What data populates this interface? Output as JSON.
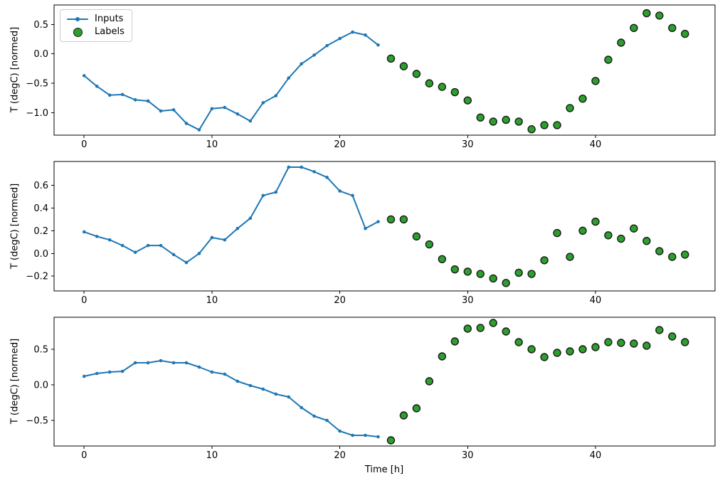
{
  "figure": {
    "background": "#ffffff",
    "grid": false
  },
  "legend": {
    "position": "upper-left-of-first-subplot",
    "entries": [
      {
        "label": "Inputs",
        "marker": "line-with-dot",
        "color": "#1f77b4"
      },
      {
        "label": "Labels",
        "marker": "circle",
        "color": "#2ca02c",
        "edge_color": "#1a1a1a"
      }
    ]
  },
  "chart_data": [
    {
      "type": "line",
      "title": "",
      "xlabel": "",
      "ylabel": "T (degC) [normed]",
      "xlim": [
        -2.35,
        49.35
      ],
      "ylim": [
        -1.38,
        0.83
      ],
      "x_ticks": [
        0,
        10,
        20,
        30,
        40
      ],
      "y_ticks": [
        0.5,
        0.0,
        -0.5,
        -1.0
      ],
      "legend_visible": true,
      "series": [
        {
          "name": "Inputs",
          "type": "line",
          "color": "#1f77b4",
          "x": [
            0,
            1,
            2,
            3,
            4,
            5,
            6,
            7,
            8,
            9,
            10,
            11,
            12,
            13,
            14,
            15,
            16,
            17,
            18,
            19,
            20,
            21,
            22,
            23
          ],
          "values": [
            -0.37,
            -0.55,
            -0.7,
            -0.69,
            -0.78,
            -0.8,
            -0.97,
            -0.95,
            -1.18,
            -1.29,
            -0.93,
            -0.91,
            -1.02,
            -1.14,
            -0.83,
            -0.71,
            -0.41,
            -0.17,
            -0.02,
            0.14,
            0.26,
            0.37,
            0.32,
            0.15
          ]
        },
        {
          "name": "Labels",
          "type": "scatter",
          "color": "#2ca02c",
          "edge_color": "#1a1a1a",
          "x": [
            24,
            25,
            26,
            27,
            28,
            29,
            30,
            31,
            32,
            33,
            34,
            35,
            36,
            37,
            38,
            39,
            40,
            41,
            42,
            43,
            44,
            45,
            46,
            47
          ],
          "values": [
            -0.08,
            -0.21,
            -0.34,
            -0.5,
            -0.56,
            -0.65,
            -0.79,
            -1.08,
            -1.15,
            -1.12,
            -1.15,
            -1.28,
            -1.21,
            -1.21,
            -0.92,
            -0.76,
            -0.46,
            -0.1,
            0.19,
            0.44,
            0.69,
            0.65,
            0.44,
            0.34
          ]
        }
      ]
    },
    {
      "type": "line",
      "title": "",
      "xlabel": "",
      "ylabel": "T (degC) [normed]",
      "xlim": [
        -2.35,
        49.35
      ],
      "ylim": [
        -0.33,
        0.81
      ],
      "x_ticks": [
        0,
        10,
        20,
        30,
        40
      ],
      "y_ticks": [
        0.6,
        0.4,
        0.2,
        0.0,
        -0.2
      ],
      "legend_visible": false,
      "series": [
        {
          "name": "Inputs",
          "type": "line",
          "color": "#1f77b4",
          "x": [
            0,
            1,
            2,
            3,
            4,
            5,
            6,
            7,
            8,
            9,
            10,
            11,
            12,
            13,
            14,
            15,
            16,
            17,
            18,
            19,
            20,
            21,
            22,
            23
          ],
          "values": [
            0.19,
            0.15,
            0.12,
            0.07,
            0.01,
            0.07,
            0.07,
            -0.01,
            -0.08,
            0.0,
            0.14,
            0.12,
            0.22,
            0.31,
            0.51,
            0.54,
            0.76,
            0.76,
            0.72,
            0.67,
            0.55,
            0.51,
            0.22,
            0.28
          ]
        },
        {
          "name": "Labels",
          "type": "scatter",
          "color": "#2ca02c",
          "edge_color": "#1a1a1a",
          "x": [
            24,
            25,
            26,
            27,
            28,
            29,
            30,
            31,
            32,
            33,
            34,
            35,
            36,
            37,
            38,
            39,
            40,
            41,
            42,
            43,
            44,
            45,
            46,
            47
          ],
          "values": [
            0.3,
            0.3,
            0.15,
            0.08,
            -0.05,
            -0.14,
            -0.16,
            -0.18,
            -0.22,
            -0.26,
            -0.17,
            -0.18,
            -0.06,
            0.18,
            -0.03,
            0.2,
            0.28,
            0.16,
            0.13,
            0.22,
            0.11,
            0.02,
            -0.03,
            -0.01
          ]
        }
      ]
    },
    {
      "type": "line",
      "title": "",
      "xlabel": "Time [h]",
      "ylabel": "T (degC) [normed]",
      "xlim": [
        -2.35,
        49.35
      ],
      "ylim": [
        -0.86,
        0.95
      ],
      "x_ticks": [
        0,
        10,
        20,
        30,
        40
      ],
      "y_ticks": [
        0.5,
        0.0,
        -0.5
      ],
      "legend_visible": false,
      "series": [
        {
          "name": "Inputs",
          "type": "line",
          "color": "#1f77b4",
          "x": [
            0,
            1,
            2,
            3,
            4,
            5,
            6,
            7,
            8,
            9,
            10,
            11,
            12,
            13,
            14,
            15,
            16,
            17,
            18,
            19,
            20,
            21,
            22,
            23
          ],
          "values": [
            0.12,
            0.16,
            0.18,
            0.19,
            0.31,
            0.31,
            0.34,
            0.31,
            0.31,
            0.25,
            0.18,
            0.15,
            0.05,
            -0.01,
            -0.06,
            -0.13,
            -0.17,
            -0.32,
            -0.44,
            -0.5,
            -0.65,
            -0.71,
            -0.71,
            -0.73
          ]
        },
        {
          "name": "Labels",
          "type": "scatter",
          "color": "#2ca02c",
          "edge_color": "#1a1a1a",
          "x": [
            24,
            25,
            26,
            27,
            28,
            29,
            30,
            31,
            32,
            33,
            34,
            35,
            36,
            37,
            38,
            39,
            40,
            41,
            42,
            43,
            44,
            45,
            46,
            47
          ],
          "values": [
            -0.78,
            -0.43,
            -0.33,
            0.05,
            0.4,
            0.61,
            0.79,
            0.8,
            0.87,
            0.75,
            0.6,
            0.5,
            0.39,
            0.45,
            0.47,
            0.5,
            0.53,
            0.6,
            0.59,
            0.58,
            0.55,
            0.77,
            0.68,
            0.6
          ]
        }
      ]
    }
  ]
}
